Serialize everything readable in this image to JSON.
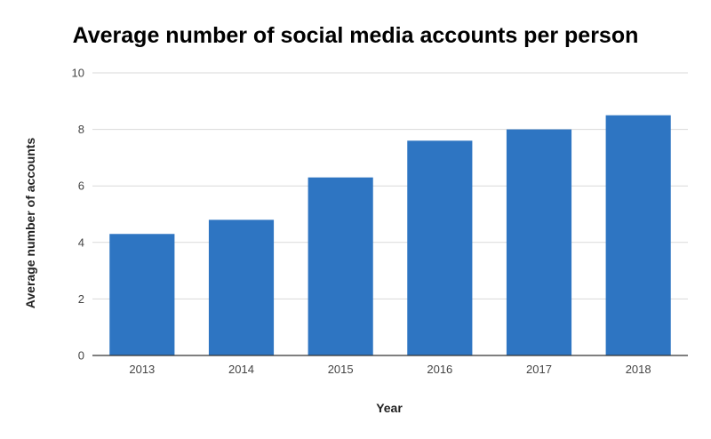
{
  "chart_data": {
    "type": "bar",
    "title": "Average number of social media accounts per person",
    "xlabel": "Year",
    "ylabel": "Average number of accounts",
    "categories": [
      "2013",
      "2014",
      "2015",
      "2016",
      "2017",
      "2018"
    ],
    "values": [
      4.3,
      4.8,
      6.3,
      7.6,
      8.0,
      8.5
    ],
    "ylim": [
      0,
      10
    ],
    "yticks": [
      0,
      2,
      4,
      6,
      8,
      10
    ],
    "grid": true,
    "bar_color": "#2e75c2",
    "gridline_color": "#d9d9d9",
    "axis_color": "#333333"
  }
}
